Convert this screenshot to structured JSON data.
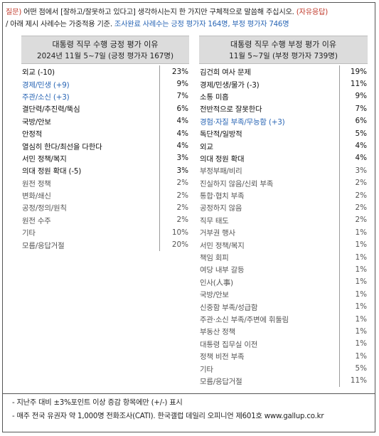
{
  "question": {
    "prefix": "질문)",
    "text1": " 어떤 점에서 [잘하고/잘못하고 있다고] 생각하시는지 한 가지만 구체적으로 말씀해 주십시오. ",
    "open_answer": "(자유응답)",
    "text2": "/ 아래 제시 사례수는 가중적용 기준. ",
    "sample": "조사완료 사례수는 긍정 평가자 164명, 부정 평가자 746명"
  },
  "positive": {
    "title": "대통령 직무 수행 긍정 평가 이유",
    "subtitle": "2024년 11월 5~7일 (긍정 평가자 167명)",
    "items": [
      {
        "label": "외교 (-10)",
        "value": "23%",
        "style": "normal"
      },
      {
        "label": "경제/민생 (+9)",
        "value": "9%",
        "style": "blue"
      },
      {
        "label": "주관/소신 (+3)",
        "value": "7%",
        "style": "blue"
      },
      {
        "label": "결단력/추진력/뚝심",
        "value": "6%",
        "style": "normal"
      },
      {
        "label": "국방/안보",
        "value": "4%",
        "style": "normal"
      },
      {
        "label": "안정적",
        "value": "4%",
        "style": "normal"
      },
      {
        "label": "열심히 한다/최선을 다한다",
        "value": "4%",
        "style": "normal"
      },
      {
        "label": "서민 정책/복지",
        "value": "3%",
        "style": "normal"
      },
      {
        "label": "의대 정원 확대 (-5)",
        "value": "3%",
        "style": "normal"
      },
      {
        "label": "원전 정책",
        "value": "2%",
        "style": "gray"
      },
      {
        "label": "변화/쇄신",
        "value": "2%",
        "style": "gray"
      },
      {
        "label": "공정/정의/원칙",
        "value": "2%",
        "style": "gray"
      },
      {
        "label": "원전 수주",
        "value": "2%",
        "style": "gray"
      },
      {
        "label": "기타",
        "value": "10%",
        "style": "gray"
      },
      {
        "label": "모름/응답거절",
        "value": "20%",
        "style": "gray"
      }
    ]
  },
  "negative": {
    "title": "대통령 직무 수행 부정 평가 이유",
    "subtitle": "11월 5~7일 (부정 평가자 739명)",
    "items": [
      {
        "label": "김건희 여사 문제",
        "value": "19%",
        "style": "normal"
      },
      {
        "label": "경제/민생/물가 (-3)",
        "value": "11%",
        "style": "normal"
      },
      {
        "label": "소통 미흡",
        "value": "9%",
        "style": "normal"
      },
      {
        "label": "전반적으로 잘못한다",
        "value": "7%",
        "style": "normal"
      },
      {
        "label": "경험·자질 부족/무능함 (+3)",
        "value": "6%",
        "style": "blue"
      },
      {
        "label": "독단적/일방적",
        "value": "5%",
        "style": "normal"
      },
      {
        "label": "외교",
        "value": "4%",
        "style": "normal"
      },
      {
        "label": "의대 정원 확대",
        "value": "4%",
        "style": "normal"
      },
      {
        "label": "부정부패/비리",
        "value": "3%",
        "style": "gray"
      },
      {
        "label": "진실하지 않음/신뢰 부족",
        "value": "2%",
        "style": "gray"
      },
      {
        "label": "통합·협치 부족",
        "value": "2%",
        "style": "gray"
      },
      {
        "label": "공정하지 않음",
        "value": "2%",
        "style": "gray"
      },
      {
        "label": "직무 태도",
        "value": "2%",
        "style": "gray"
      },
      {
        "label": "거부권 행사",
        "value": "1%",
        "style": "gray"
      },
      {
        "label": "서민 정책/복지",
        "value": "1%",
        "style": "gray"
      },
      {
        "label": "책임 회피",
        "value": "1%",
        "style": "gray"
      },
      {
        "label": "여당 내부 갈등",
        "value": "1%",
        "style": "gray"
      },
      {
        "label": "인사(人事)",
        "value": "1%",
        "style": "gray"
      },
      {
        "label": "국방/안보",
        "value": "1%",
        "style": "gray"
      },
      {
        "label": "신중함 부족/성급함",
        "value": "1%",
        "style": "gray"
      },
      {
        "label": "주관·소신 부족/주변에 휘둘림",
        "value": "1%",
        "style": "gray"
      },
      {
        "label": "부동산 정책",
        "value": "1%",
        "style": "gray"
      },
      {
        "label": "대통령 집무실 이전",
        "value": "1%",
        "style": "gray"
      },
      {
        "label": "정책 비전 부족",
        "value": "1%",
        "style": "gray"
      },
      {
        "label": "기타",
        "value": "5%",
        "style": "gray"
      },
      {
        "label": "모름/응답거절",
        "value": "11%",
        "style": "gray"
      }
    ]
  },
  "footer": {
    "note1": "- 지난주 대비 ±3%포인트 이상 증감 항목에만 (+/-) 표시",
    "note2": "- 매주 전국 유권자 약 1,000명 전화조사(CATI). 한국갤럽 데일리 오피니언 제601호 www.gallup.co.kr"
  }
}
